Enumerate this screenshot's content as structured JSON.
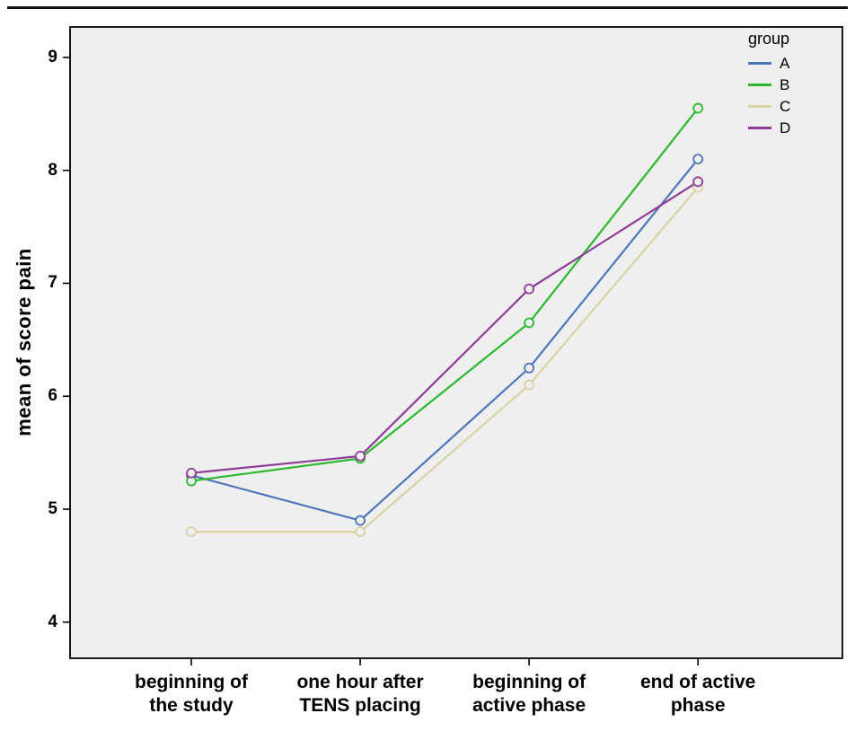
{
  "chart_data": {
    "type": "line",
    "title": "",
    "xlabel": "",
    "ylabel": "mean of score pain",
    "legend_title": "group",
    "legend_position": "top-right-inside",
    "grid": false,
    "plot_background": "#efefef",
    "categories": [
      "beginning of\nthe study",
      "one hour after\nTENS placing",
      "beginning of\nactive phase",
      "end of active\nphase"
    ],
    "ylim": [
      3.68,
      9.27
    ],
    "yticks": [
      4,
      5,
      6,
      7,
      8,
      9
    ],
    "series": [
      {
        "name": "A",
        "color": "#4d76bc",
        "values": [
          5.3,
          4.9,
          6.25,
          8.1
        ]
      },
      {
        "name": "B",
        "color": "#2db82d",
        "values": [
          5.25,
          5.45,
          6.65,
          8.55
        ]
      },
      {
        "name": "C",
        "color": "#d9d3a4",
        "values": [
          4.8,
          4.8,
          6.1,
          7.85
        ]
      },
      {
        "name": "D",
        "color": "#8f3d98",
        "values": [
          5.32,
          5.47,
          6.95,
          7.9
        ]
      }
    ]
  }
}
